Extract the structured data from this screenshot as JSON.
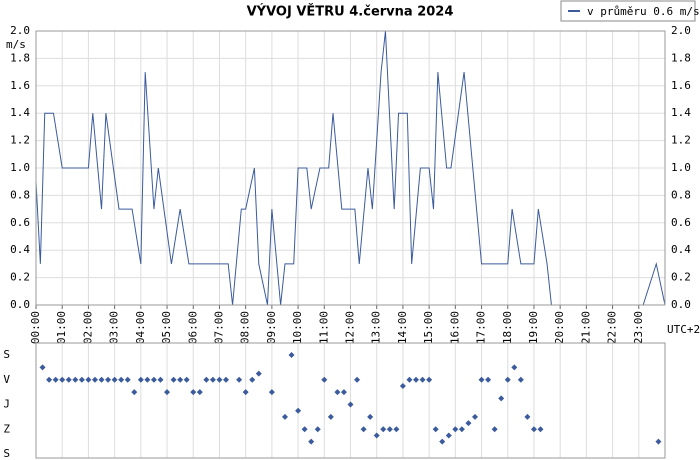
{
  "chart_data": [
    {
      "type": "line",
      "title": "VÝVOJ VĚTRU  4.června 2024",
      "y_label": "m/s",
      "x_label": "UTC+2",
      "xlim": [
        0,
        1440
      ],
      "xticks": [
        {
          "value": 0,
          "label": "00:00"
        },
        {
          "value": 60,
          "label": "01:00"
        },
        {
          "value": 120,
          "label": "02:00"
        },
        {
          "value": 180,
          "label": "03:00"
        },
        {
          "value": 240,
          "label": "04:00"
        },
        {
          "value": 300,
          "label": "05:00"
        },
        {
          "value": 360,
          "label": "06:00"
        },
        {
          "value": 420,
          "label": "07:00"
        },
        {
          "value": 480,
          "label": "08:00"
        },
        {
          "value": 540,
          "label": "09:00"
        },
        {
          "value": 600,
          "label": "10:00"
        },
        {
          "value": 660,
          "label": "11:00"
        },
        {
          "value": 720,
          "label": "12:00"
        },
        {
          "value": 780,
          "label": "13:00"
        },
        {
          "value": 840,
          "label": "14:00"
        },
        {
          "value": 900,
          "label": "15:00"
        },
        {
          "value": 960,
          "label": "16:00"
        },
        {
          "value": 1020,
          "label": "17:00"
        },
        {
          "value": 1080,
          "label": "18:00"
        },
        {
          "value": 1140,
          "label": "19:00"
        },
        {
          "value": 1200,
          "label": "20:00"
        },
        {
          "value": 1260,
          "label": "21:00"
        },
        {
          "value": 1320,
          "label": "22:00"
        },
        {
          "value": 1380,
          "label": "23:00"
        }
      ],
      "ylim": [
        0,
        2
      ],
      "yticks": [
        {
          "value": 0,
          "label": "0.0"
        },
        0.2,
        0.4,
        0.6,
        0.8,
        {
          "value": 1,
          "label": "1.0"
        },
        1.2,
        1.4,
        1.6,
        1.8,
        {
          "value": 2,
          "label": "2.0"
        }
      ],
      "grid": true,
      "legend": "top-right",
      "series": [
        {
          "name": "v průměru 0.6 m/s",
          "color": "#3b5b9c",
          "x": [
            0,
            10,
            20,
            40,
            60,
            120,
            130,
            150,
            160,
            190,
            220,
            240,
            250,
            270,
            280,
            310,
            330,
            350,
            440,
            450,
            470,
            480,
            500,
            510,
            530,
            540,
            560,
            570,
            590,
            600,
            620,
            630,
            650,
            670,
            680,
            700,
            730,
            740,
            760,
            770,
            790,
            800,
            820,
            830,
            850,
            860,
            880,
            900,
            910,
            920,
            940,
            950,
            980,
            1020,
            1080,
            1090,
            1110,
            1140,
            1150,
            1170,
            1180,
            1390,
            1420,
            1440
          ],
          "values": [
            0.9,
            0.3,
            1.4,
            1.4,
            1.0,
            1.0,
            1.4,
            0.7,
            1.4,
            0.7,
            0.7,
            0.3,
            1.7,
            0.7,
            1.0,
            0.3,
            0.7,
            0.3,
            0.3,
            0.0,
            0.7,
            0.7,
            1.0,
            0.3,
            0.0,
            0.7,
            0.0,
            0.3,
            0.3,
            1.0,
            1.0,
            0.7,
            1.0,
            1.0,
            1.4,
            0.7,
            0.7,
            0.3,
            1.0,
            0.7,
            1.7,
            2.0,
            0.7,
            1.4,
            1.4,
            0.3,
            1.0,
            1.0,
            0.7,
            1.7,
            1.0,
            1.0,
            1.7,
            0.3,
            0.3,
            0.7,
            0.3,
            0.3,
            0.7,
            0.3,
            0.0,
            0.0,
            0.3,
            0.0
          ]
        }
      ]
    },
    {
      "type": "scatter",
      "xlim": [
        0,
        1440
      ],
      "ylim": [
        0,
        360
      ],
      "yticks": [
        {
          "value": 0,
          "label": "S"
        },
        {
          "value": 90,
          "label": "V"
        },
        {
          "value": 180,
          "label": "J"
        },
        {
          "value": 270,
          "label": "Z"
        },
        {
          "value": 360,
          "label": "S"
        }
      ],
      "series": [
        {
          "color": "#3b5b9c",
          "x": [
            15,
            30,
            45,
            60,
            75,
            90,
            105,
            120,
            135,
            150,
            165,
            180,
            195,
            210,
            225,
            240,
            255,
            270,
            285,
            300,
            315,
            330,
            345,
            360,
            375,
            390,
            405,
            420,
            435,
            465,
            480,
            495,
            510,
            540,
            570,
            585,
            600,
            615,
            630,
            645,
            660,
            675,
            690,
            705,
            720,
            735,
            750,
            765,
            780,
            795,
            810,
            825,
            840,
            855,
            870,
            885,
            900,
            915,
            930,
            945,
            960,
            975,
            990,
            1005,
            1020,
            1035,
            1050,
            1065,
            1080,
            1095,
            1110,
            1125,
            1140,
            1155,
            1425
          ],
          "values": [
            45,
            90,
            90,
            90,
            90,
            90,
            90,
            90,
            90,
            90,
            90,
            90,
            90,
            90,
            135,
            90,
            90,
            90,
            90,
            135,
            90,
            90,
            90,
            135,
            135,
            90,
            90,
            90,
            90,
            90,
            135,
            90,
            67.5,
            135,
            225,
            0,
            202.5,
            270,
            315,
            270,
            90,
            225,
            135,
            135,
            180,
            90,
            270,
            225,
            292.5,
            270,
            270,
            270,
            112.5,
            90,
            90,
            90,
            90,
            270,
            315,
            292.5,
            270,
            270,
            247.5,
            225,
            90,
            90,
            270,
            157.5,
            90,
            45,
            90,
            225,
            270,
            270,
            315
          ]
        }
      ]
    }
  ]
}
